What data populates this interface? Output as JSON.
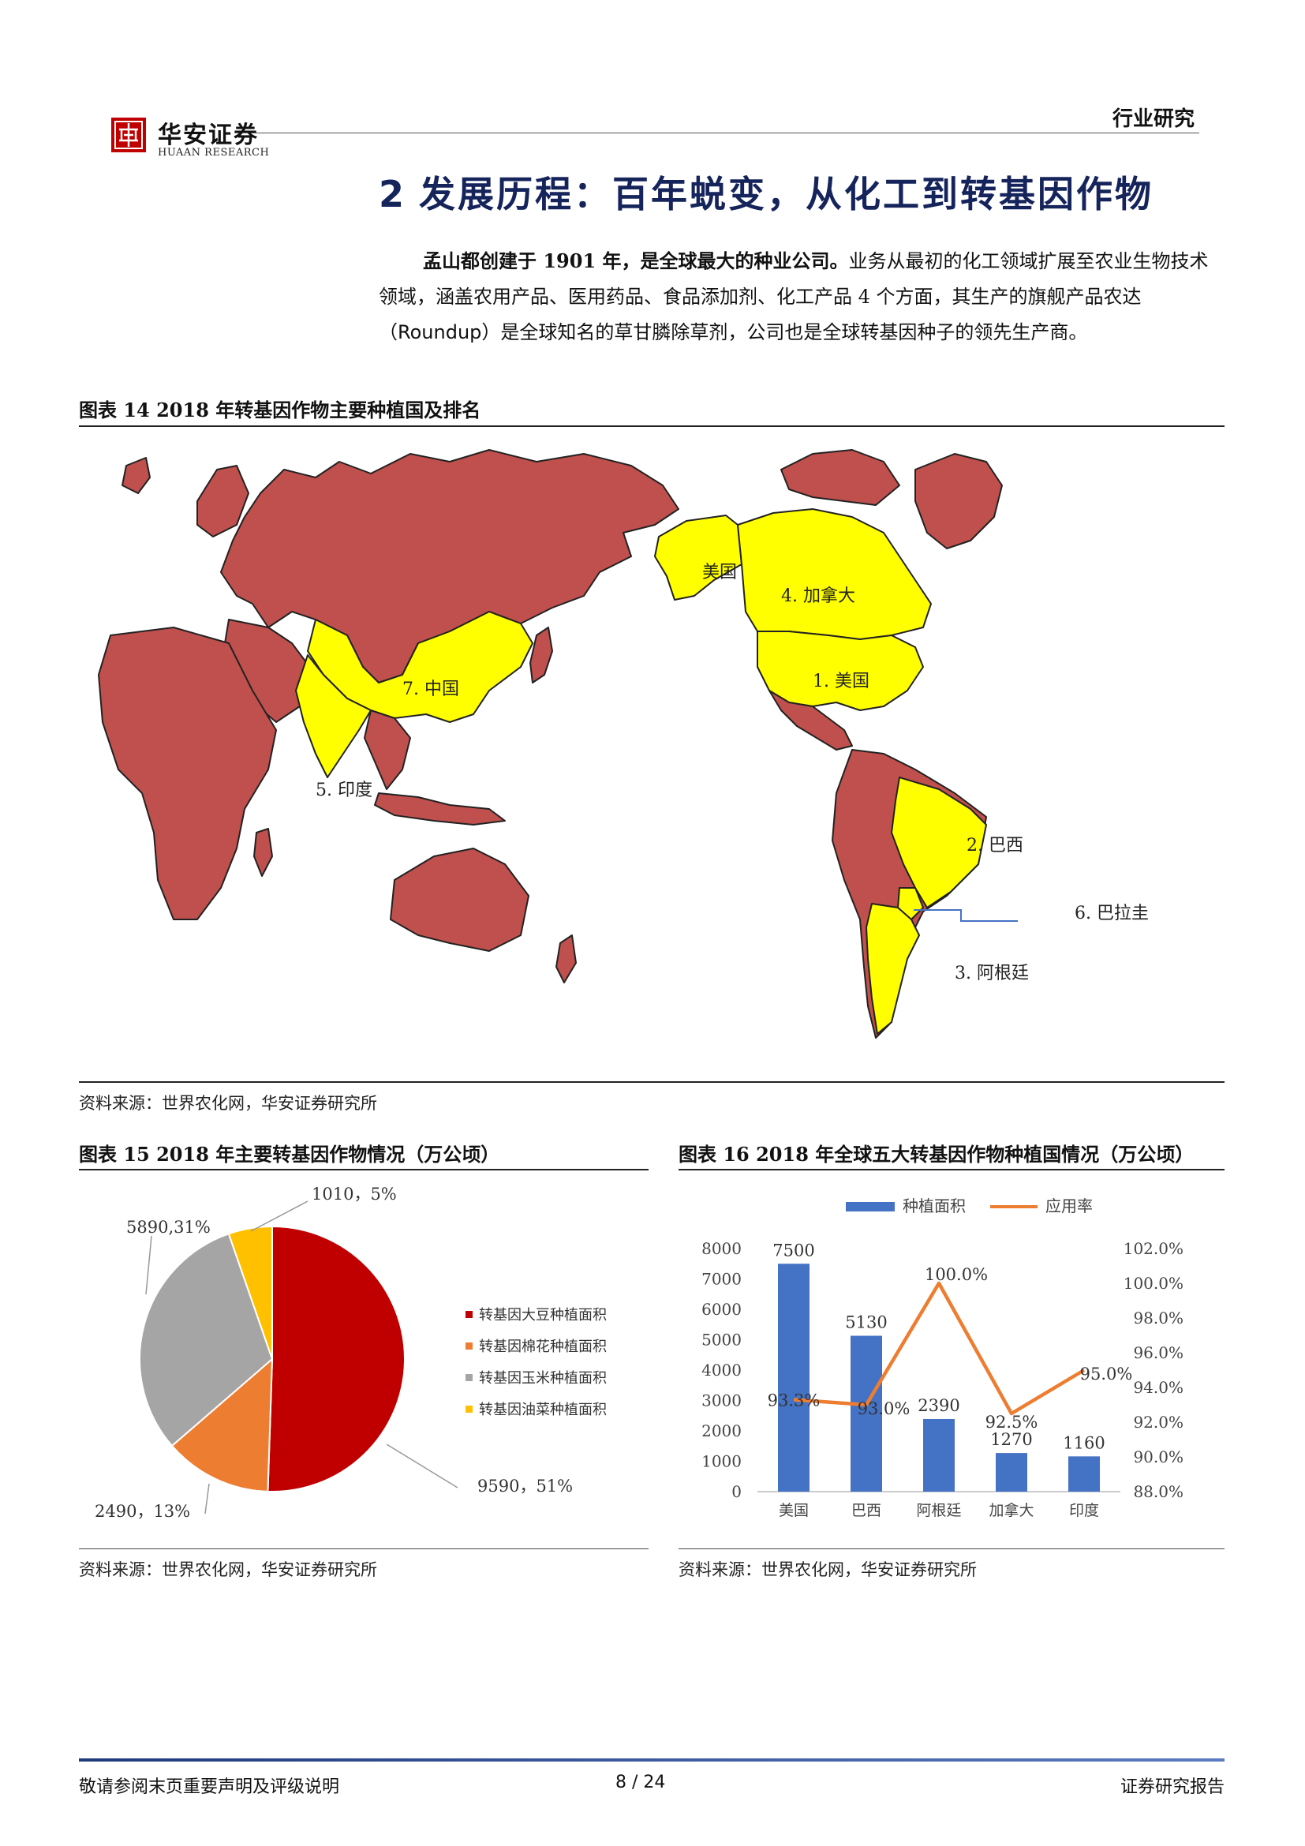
{
  "header": {
    "brand_cn": "华安证券",
    "brand_en": "HUAAN RESEARCH",
    "category": "行业研究"
  },
  "section": {
    "number": "2",
    "title": "发展历程：百年蜕变，从化工到转基因作物"
  },
  "paragraph": {
    "bold_lead": "孟山都创建于 1901 年，是全球最大的种业公司。",
    "text_1": "业务从最初的化工领域扩展至农业生物技术领域，涵盖农用产品、医用药品、食品添加剂、化工产品 4 个方面，其生产的旗舰产品农达（",
    "roundup": "Roundup",
    "text_2": "）是全球知名的草甘膦除草剂，公司也是全球转基因种子的领先生产商。"
  },
  "figure14": {
    "caption": "图表 14   2018 年转基因作物主要种植国及排名",
    "source": "资料来源：世界农化网，华安证券研究所",
    "labels": [
      "美国",
      "4. 加拿大",
      "1. 美国",
      "7. 中国",
      "5. 印度",
      "2. 巴西",
      "6. 巴拉圭",
      "3. 阿根廷"
    ],
    "colors": {
      "highlight": "#ffff00",
      "base": "#c0504d",
      "border": "#222222",
      "leader": "#4472c4"
    }
  },
  "figure15": {
    "caption": "图表 15 2018 年主要转基因作物情况（万公顷）",
    "source": "资料来源：世界农化网，华安证券研究所",
    "chart_data": {
      "type": "pie",
      "title": "",
      "slices": [
        {
          "name": "转基因大豆种植面积",
          "value": 9590,
          "label": "9590，51%",
          "color": "#c00000"
        },
        {
          "name": "转基因棉花种植面积",
          "value": 2490,
          "label": "2490，13%",
          "color": "#ed7d31"
        },
        {
          "name": "转基因玉米种植面积",
          "value": 5890,
          "label": "5890,31%",
          "color": "#a5a5a5"
        },
        {
          "name": "转基因油菜种植面积",
          "value": 1010,
          "label": "1010，5%",
          "color": "#ffc000"
        }
      ],
      "legend_position": "right"
    }
  },
  "figure16": {
    "caption": "图表 16 2018 年全球五大转基因作物种植国情况（万公顷）",
    "source": "资料来源：世界农化网，华安证券研究所",
    "chart_data": {
      "type": "bar",
      "categories": [
        "美国",
        "巴西",
        "阿根廷",
        "加拿大",
        "印度"
      ],
      "series": [
        {
          "name": "种植面积",
          "type": "bar",
          "axis": "left",
          "color": "#4472c4",
          "values": [
            7500,
            5130,
            2390,
            1270,
            1160
          ],
          "labels": [
            "7500",
            "5130",
            "2390",
            "1270",
            "1160"
          ]
        },
        {
          "name": "应用率",
          "type": "line",
          "axis": "right",
          "color": "#ed7d31",
          "values": [
            93.3,
            93.0,
            100.0,
            92.5,
            95.0
          ],
          "labels": [
            "93.3%",
            "93.0%",
            "100.0%",
            "92.5%",
            "95.0%"
          ]
        }
      ],
      "y_left": {
        "min": 0,
        "max": 8000,
        "ticks": [
          "0",
          "1000",
          "2000",
          "3000",
          "4000",
          "5000",
          "6000",
          "7000",
          "8000"
        ]
      },
      "y_right": {
        "min": 88,
        "max": 102,
        "ticks": [
          "88.0%",
          "90.0%",
          "92.0%",
          "94.0%",
          "96.0%",
          "98.0%",
          "100.0%",
          "102.0%"
        ]
      },
      "legend_position": "top",
      "grid": false
    }
  },
  "footer": {
    "left": "敬请参阅末页重要声明及评级说明",
    "page": "8 / 24",
    "right": "证券研究报告"
  }
}
